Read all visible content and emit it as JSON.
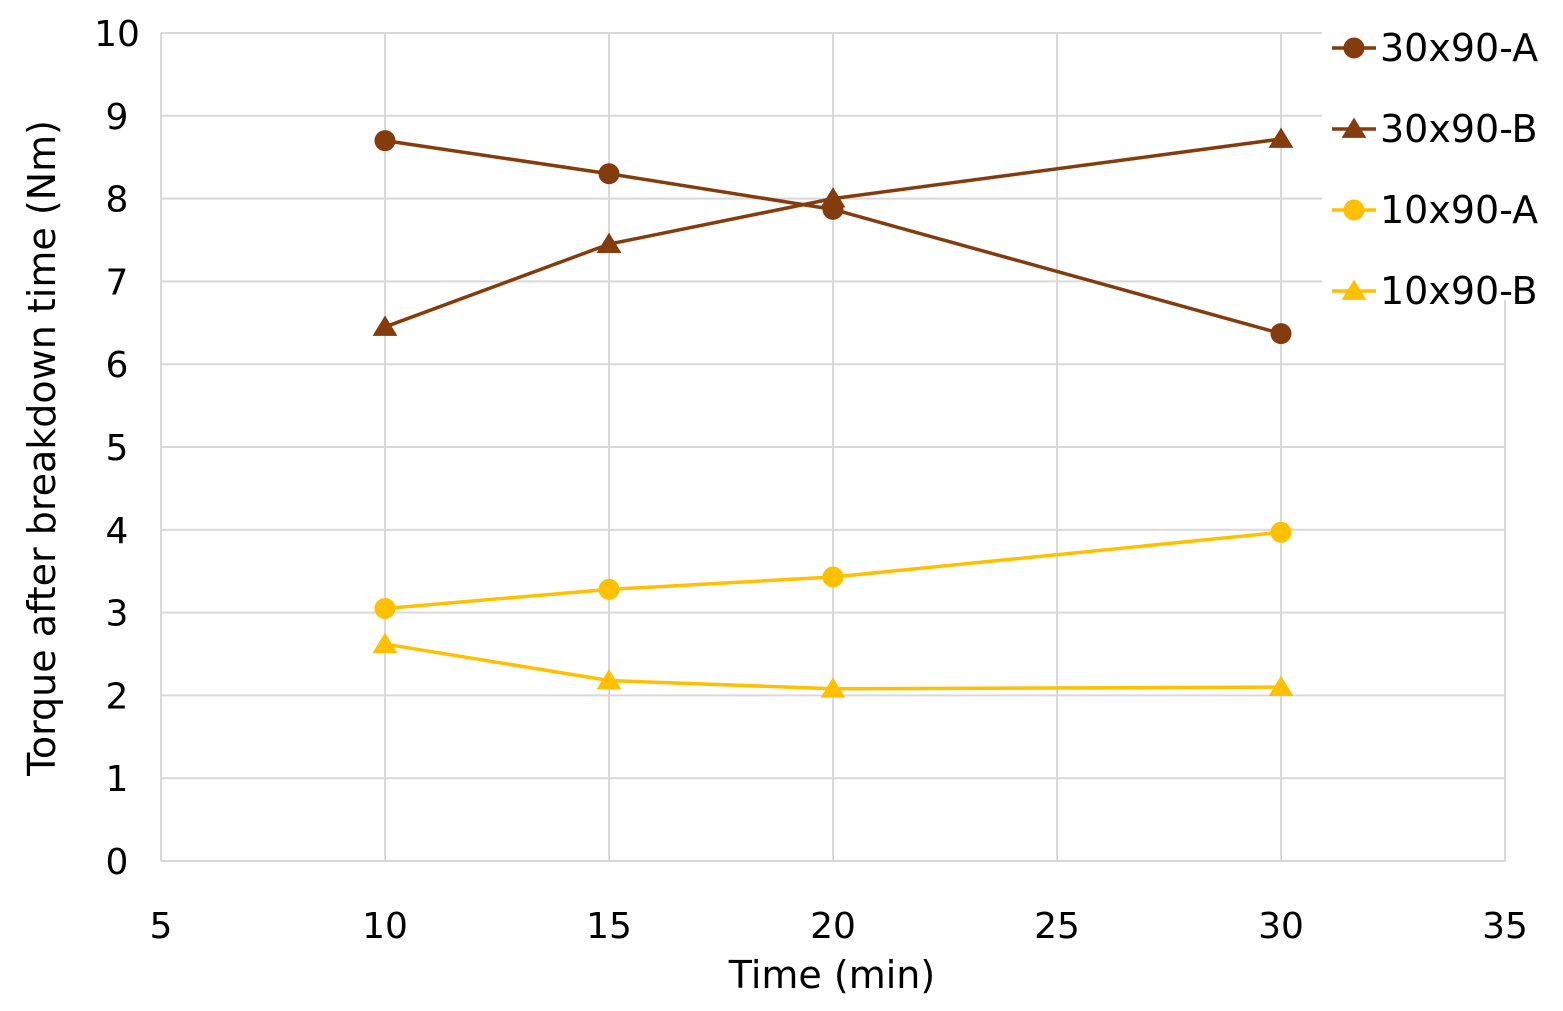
{
  "chart_data": {
    "type": "line",
    "title": "",
    "xlabel": "Time (min)",
    "ylabel": "Torque after breakdown time (Nm)",
    "xlim": [
      5,
      35
    ],
    "ylim": [
      0,
      10
    ],
    "xticks": [
      5,
      10,
      15,
      20,
      25,
      30,
      35
    ],
    "yticks": [
      0,
      1,
      2,
      3,
      4,
      5,
      6,
      7,
      8,
      9,
      10
    ],
    "grid": true,
    "legend_position": "top-right",
    "series": [
      {
        "name": "30x90-A",
        "color": "#843c0c",
        "marker": "circle",
        "x": [
          10,
          15,
          20,
          30
        ],
        "y": [
          8.7,
          8.3,
          7.87,
          6.37
        ]
      },
      {
        "name": "30x90-B",
        "color": "#843c0c",
        "marker": "triangle",
        "x": [
          10,
          15,
          20,
          30
        ],
        "y": [
          6.45,
          7.45,
          8.0,
          8.72
        ]
      },
      {
        "name": "10x90-A",
        "color": "#ffc000",
        "marker": "circle",
        "x": [
          10,
          15,
          20,
          30
        ],
        "y": [
          3.05,
          3.28,
          3.43,
          3.97
        ]
      },
      {
        "name": "10x90-B",
        "color": "#ffc000",
        "marker": "triangle",
        "x": [
          10,
          15,
          20,
          30
        ],
        "y": [
          2.62,
          2.18,
          2.08,
          2.1
        ]
      }
    ]
  }
}
